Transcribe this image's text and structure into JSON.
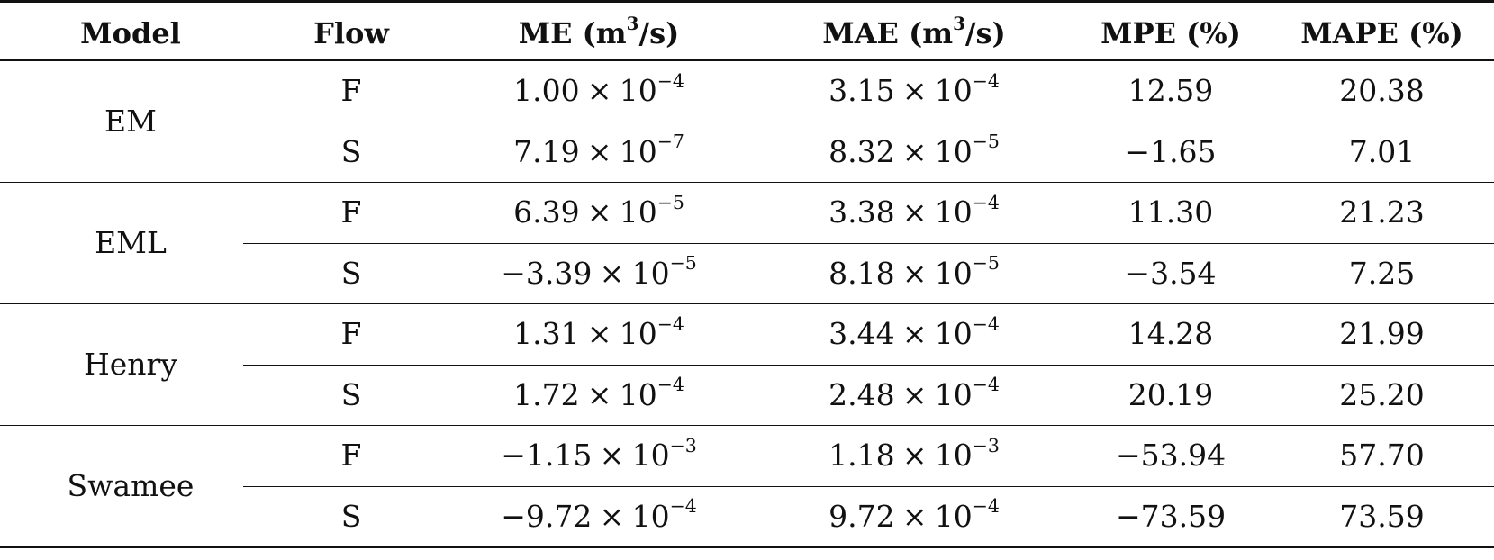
{
  "table": {
    "headers": {
      "model": "Model",
      "flow": "Flow",
      "me": "ME (m",
      "me_exp": "3",
      "me_tail": "/s)",
      "mae": "MAE (m",
      "mae_exp": "3",
      "mae_tail": "/s)",
      "mpe": "MPE (%)",
      "mape": "MAPE (%)"
    },
    "groups": [
      {
        "model": "EM",
        "rows": [
          {
            "flow": "F",
            "me_mant": "1.00",
            "me_exp": "−4",
            "mae_mant": "3.15",
            "mae_exp": "−4",
            "mpe": "12.59",
            "mape": "20.38"
          },
          {
            "flow": "S",
            "me_mant": "7.19",
            "me_exp": "−7",
            "mae_mant": "8.32",
            "mae_exp": "−5",
            "mpe": "−1.65",
            "mape": "7.01"
          }
        ]
      },
      {
        "model": "EML",
        "rows": [
          {
            "flow": "F",
            "me_mant": "6.39",
            "me_exp": "−5",
            "mae_mant": "3.38",
            "mae_exp": "−4",
            "mpe": "11.30",
            "mape": "21.23"
          },
          {
            "flow": "S",
            "me_mant": "−3.39",
            "me_exp": "−5",
            "mae_mant": "8.18",
            "mae_exp": "−5",
            "mpe": "−3.54",
            "mape": "7.25"
          }
        ]
      },
      {
        "model": "Henry",
        "rows": [
          {
            "flow": "F",
            "me_mant": "1.31",
            "me_exp": "−4",
            "mae_mant": "3.44",
            "mae_exp": "−4",
            "mpe": "14.28",
            "mape": "21.99"
          },
          {
            "flow": "S",
            "me_mant": "1.72",
            "me_exp": "−4",
            "mae_mant": "2.48",
            "mae_exp": "−4",
            "mpe": "20.19",
            "mape": "25.20"
          }
        ]
      },
      {
        "model": "Swamee",
        "rows": [
          {
            "flow": "F",
            "me_mant": "−1.15",
            "me_exp": "−3",
            "mae_mant": "1.18",
            "mae_exp": "−3",
            "mpe": "−53.94",
            "mape": "57.70"
          },
          {
            "flow": "S",
            "me_mant": "−9.72",
            "me_exp": "−4",
            "mae_mant": "9.72",
            "mae_exp": "−4",
            "mpe": "−73.59",
            "mape": "73.59"
          }
        ]
      }
    ],
    "times_symbol": "×",
    "base": "10"
  }
}
